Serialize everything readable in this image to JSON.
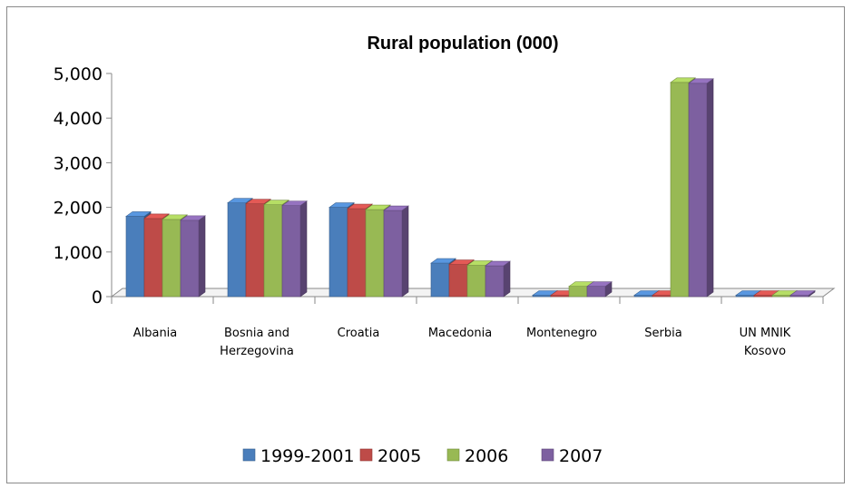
{
  "chart_data": {
    "type": "bar",
    "title": "Rural population (000)",
    "xlabel": "",
    "ylabel": "",
    "ylim": [
      0,
      5000
    ],
    "yticks": [
      "0",
      "1,000",
      "2,000",
      "3,000",
      "4,000",
      "5,000"
    ],
    "ytick_values": [
      0,
      1000,
      2000,
      3000,
      4000,
      5000
    ],
    "categories": [
      [
        "Albania"
      ],
      [
        "Bosnia and",
        "Herzegovina"
      ],
      [
        "Croatia"
      ],
      [
        "Macedonia"
      ],
      [
        "Montenegro"
      ],
      [
        "Serbia"
      ],
      [
        "UN MNIK",
        "Kosovo"
      ]
    ],
    "series": [
      {
        "name": "1999-2001",
        "color": "#4a7ebb",
        "values": [
          1800,
          2100,
          2000,
          750,
          0,
          0,
          0
        ]
      },
      {
        "name": "2005",
        "color": "#be4b48",
        "values": [
          1750,
          2080,
          1970,
          720,
          0,
          0,
          0
        ]
      },
      {
        "name": "2006",
        "color": "#98b954",
        "values": [
          1730,
          2060,
          1950,
          700,
          230,
          4800,
          0
        ]
      },
      {
        "name": "2007",
        "color": "#7d60a0",
        "values": [
          1710,
          2040,
          1930,
          690,
          230,
          4780,
          0
        ]
      }
    ],
    "grid": false,
    "legend": "bottom",
    "style": "3d-column"
  }
}
